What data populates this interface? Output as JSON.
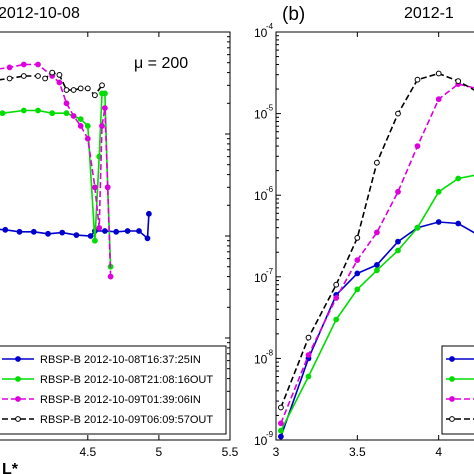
{
  "chart_data": [
    {
      "panel": "left",
      "type": "line",
      "title": "2012-10-08",
      "annotation": "μ = 200",
      "xlabel": "L*",
      "xlim": [
        3.0,
        5.5
      ],
      "xticks": [
        "4.5",
        "5",
        "5.5"
      ],
      "xtick_values": [
        4.5,
        5.0,
        5.5
      ],
      "ylog": true,
      "ylim": [
        0.0001,
        1
      ],
      "grid": false,
      "legend_position": "bottom-right",
      "series": [
        {
          "name": "RBSP-B 2012-10-08T16:37:25IN",
          "color": "#0000cc",
          "dash": "solid",
          "marker": "circle",
          "x": [
            3.62,
            3.72,
            3.82,
            3.92,
            4.02,
            4.12,
            4.22,
            4.32,
            4.42,
            4.52,
            4.55,
            4.62,
            4.7,
            4.78,
            4.86,
            4.92,
            4.93
          ],
          "y": [
            0.012,
            0.012,
            0.0118,
            0.0115,
            0.011,
            0.011,
            0.0105,
            0.0108,
            0.0102,
            0.01,
            0.0112,
            0.0112,
            0.011,
            0.0112,
            0.0112,
            0.0095,
            0.0165
          ]
        },
        {
          "name": "RBSP-B 2012-10-08T21:08:16OUT",
          "color": "#00dd00",
          "dash": "solid",
          "marker": "circle",
          "x": [
            3.62,
            3.75,
            3.9,
            4.05,
            4.15,
            4.25,
            4.35,
            4.45,
            4.5,
            4.55,
            4.58,
            4.6,
            4.62,
            4.64,
            4.66
          ],
          "y": [
            0.15,
            0.15,
            0.16,
            0.17,
            0.17,
            0.16,
            0.16,
            0.14,
            0.12,
            0.009,
            0.06,
            0.25,
            0.25,
            0.03,
            0.005
          ]
        },
        {
          "name": "RBSP-B 2012-10-09T01:39:06IN",
          "color": "#dd00dd",
          "dash": "dashed",
          "marker": "circle",
          "x": [
            3.62,
            3.8,
            3.95,
            4.05,
            4.15,
            4.25,
            4.3,
            4.35,
            4.4,
            4.45,
            4.5,
            4.55,
            4.58,
            4.6,
            4.62,
            4.64,
            4.66
          ],
          "y": [
            0.4,
            0.42,
            0.45,
            0.48,
            0.48,
            0.37,
            0.32,
            0.2,
            0.15,
            0.12,
            0.09,
            0.03,
            0.012,
            0.12,
            0.18,
            0.03,
            0.004
          ]
        },
        {
          "name": "RBSP-B 2012-10-09T06:09:57OUT",
          "color": "#000000",
          "dash": "dashed",
          "marker": "circle",
          "x": [
            3.62,
            3.8,
            3.95,
            4.05,
            4.15,
            4.2,
            4.25,
            4.3,
            4.35,
            4.4,
            4.45,
            4.5,
            4.55,
            4.6
          ],
          "y": [
            0.33,
            0.33,
            0.35,
            0.37,
            0.37,
            0.35,
            0.4,
            0.38,
            0.27,
            0.27,
            0.28,
            0.28,
            0.24,
            0.3
          ]
        }
      ]
    },
    {
      "panel": "right",
      "type": "line",
      "panel_label": "(b)",
      "title": "2012-1",
      "xlim": [
        3.0,
        4.5
      ],
      "xticks": [
        "3",
        "3.5",
        "4"
      ],
      "xtick_values": [
        3.0,
        3.5,
        4.0
      ],
      "ylog": true,
      "ylim": [
        1e-09,
        0.0001
      ],
      "yticks": [
        "10",
        "10",
        "10",
        "10",
        "10",
        "10"
      ],
      "ytick_exponents": [
        "-9",
        "-8",
        "-7",
        "-6",
        "-5",
        "-4"
      ],
      "ytick_values": [
        1e-09,
        1e-08,
        1e-07,
        1e-06,
        1e-05,
        0.0001
      ],
      "grid": false,
      "legend_position": "bottom-right",
      "series": [
        {
          "color": "#0000cc",
          "dash": "solid",
          "marker": "circle",
          "x": [
            3.03,
            3.2,
            3.37,
            3.5,
            3.62,
            3.75,
            3.87,
            4.0,
            4.12,
            4.25
          ],
          "y": [
            1.1e-09,
            1e-08,
            6e-08,
            1.1e-07,
            1.4e-07,
            2.7e-07,
            4e-07,
            4.7e-07,
            4.5e-07,
            3.2e-07
          ]
        },
        {
          "color": "#00dd00",
          "dash": "solid",
          "marker": "circle",
          "x": [
            3.03,
            3.2,
            3.37,
            3.5,
            3.62,
            3.75,
            3.87,
            4.0,
            4.12,
            4.25
          ],
          "y": [
            1.3e-09,
            6e-09,
            3e-08,
            7e-08,
            1.2e-07,
            2.1e-07,
            4e-07,
            1.1e-06,
            1.6e-06,
            1.8e-06
          ]
        },
        {
          "color": "#dd00dd",
          "dash": "dashed",
          "marker": "circle",
          "x": [
            3.03,
            3.2,
            3.37,
            3.5,
            3.62,
            3.75,
            3.87,
            4.0,
            4.12,
            4.25
          ],
          "y": [
            1.6e-09,
            1.1e-08,
            5.5e-08,
            1.6e-07,
            3.5e-07,
            1.1e-06,
            4e-06,
            1.5e-05,
            2.3e-05,
            2e-05
          ]
        },
        {
          "color": "#000000",
          "dash": "dashed",
          "marker": "circle",
          "x": [
            3.03,
            3.2,
            3.37,
            3.5,
            3.62,
            3.75,
            3.87,
            4.0,
            4.12,
            4.25
          ],
          "y": [
            2.5e-09,
            1.8e-08,
            8e-08,
            3e-07,
            2.5e-06,
            1e-05,
            2.6e-05,
            3.1e-05,
            2.5e-05,
            1.8e-05
          ]
        }
      ]
    }
  ]
}
